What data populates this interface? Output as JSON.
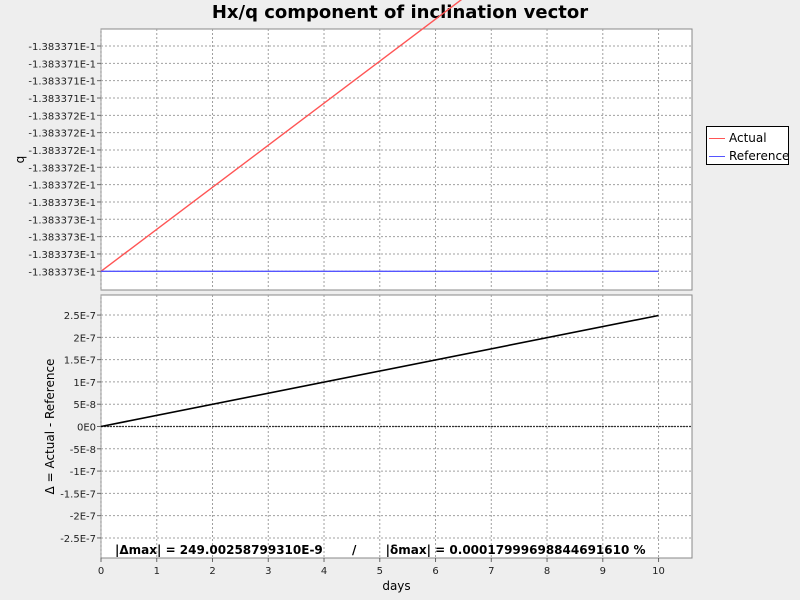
{
  "chart_data": [
    {
      "type": "line",
      "title": "Hx/q component of inclination vector",
      "xlabel": "",
      "ylabel": "q",
      "xlim": [
        0,
        10.6
      ],
      "ytick_labels": [
        "-1.383371E-1",
        "-1.383371E-1",
        "-1.383371E-1",
        "-1.383371E-1",
        "-1.383372E-1",
        "-1.383372E-1",
        "-1.383372E-1",
        "-1.383372E-1",
        "-1.383372E-1",
        "-1.383373E-1",
        "-1.383373E-1",
        "-1.383373E-1",
        "-1.383373E-1",
        "-1.383373E-1"
      ],
      "grid": true,
      "legend": "right",
      "series": [
        {
          "name": "Actual",
          "color": "#ff5555",
          "x": [
            0,
            10
          ],
          "y": [
            -0.1383373,
            -0.13833705
          ]
        },
        {
          "name": "Reference",
          "color": "#5555ff",
          "x": [
            0,
            10
          ],
          "y": [
            -0.1383373,
            -0.1383373
          ]
        }
      ]
    },
    {
      "type": "line",
      "title": "",
      "xlabel": "days",
      "ylabel": "Δ = Actual - Reference",
      "xlim": [
        0,
        10.6
      ],
      "ylim": [
        -2.95e-07,
        2.95e-07
      ],
      "xticks": [
        0,
        1,
        2,
        3,
        4,
        5,
        6,
        7,
        8,
        9,
        10
      ],
      "yticks": [
        2.5e-07,
        2e-07,
        1.5e-07,
        1e-07,
        5e-08,
        0,
        -5e-08,
        -1e-07,
        -1.5e-07,
        -2e-07,
        -2.5e-07
      ],
      "ytick_labels": [
        "2.5E-7",
        "2E-7",
        "1.5E-7",
        "1E-7",
        "5E-8",
        "0E0",
        "-5E-8",
        "-1E-7",
        "-1.5E-7",
        "-2E-7",
        "-2.5E-7"
      ],
      "grid": true,
      "series": [
        {
          "color": "#000000",
          "x": [
            0,
            10
          ],
          "y": [
            0,
            2.49e-07
          ]
        }
      ],
      "annotation": "|Δmax| = 249.00258799310E-9       /       |δmax| = 0.00017999698844691610 %"
    }
  ],
  "colors": {
    "background": "#eeeeee",
    "plot_bg": "#ffffff",
    "grid": "#a0a0a0"
  }
}
